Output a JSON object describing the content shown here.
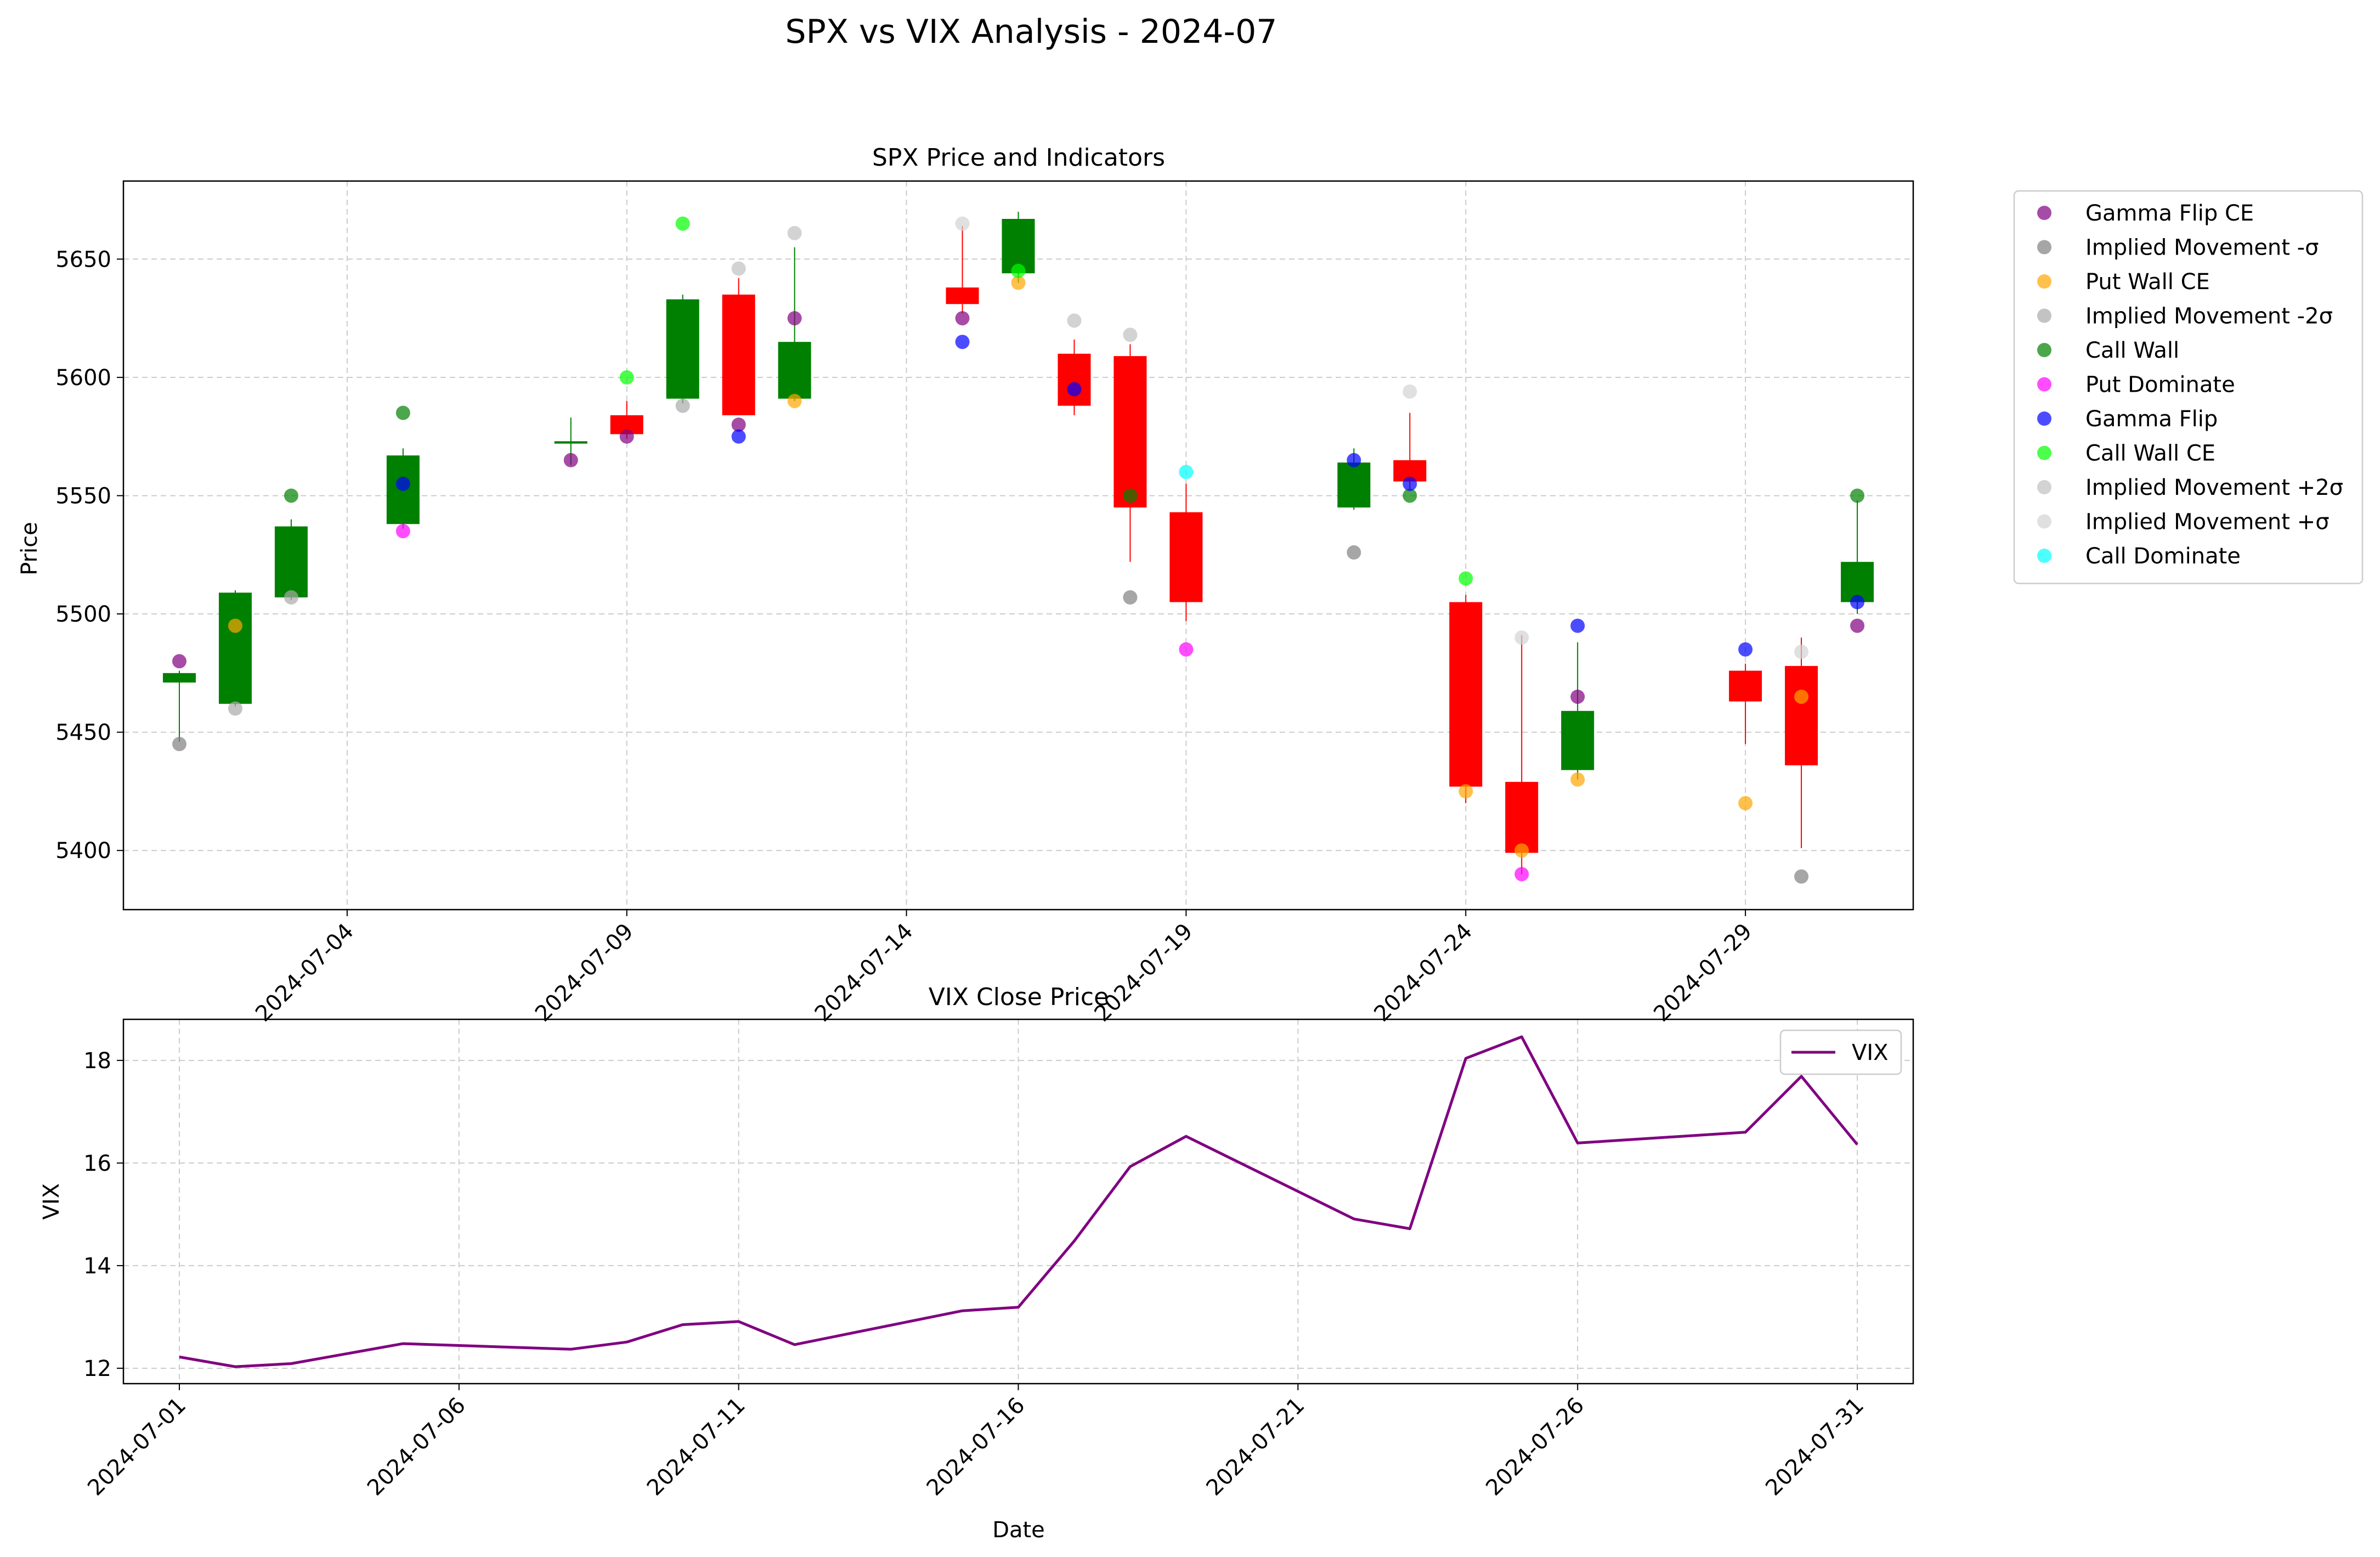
{
  "figure": {
    "title": "SPX vs VIX Analysis - 2024-07"
  },
  "colors": {
    "up": "#008000",
    "down": "#ff0000",
    "vix": "#800080",
    "grid": "#cccccc",
    "Gamma Flip CE": "#800080",
    "Implied Movement -σ": "#808080",
    "Put Wall CE": "#ffa500",
    "Implied Movement -2σ": "#a9a9a9",
    "Call Wall": "#008000",
    "Put Dominate": "#ff00ff",
    "Gamma Flip": "#0000ff",
    "Call Wall CE": "#00ff00",
    "Implied Movement +2σ": "#c0c0c0",
    "Implied Movement +σ": "#d3d3d3",
    "Call Dominate": "#00ffff"
  },
  "chart_data": [
    {
      "type": "candlestick",
      "title": "SPX Price and Indicators",
      "xlabel": "",
      "ylabel": "Price",
      "xlim": [
        "2024-06-30",
        "2024-08-01"
      ],
      "ylim": [
        5375,
        5683
      ],
      "x_ticks": [
        "2024-07-04",
        "2024-07-09",
        "2024-07-14",
        "2024-07-19",
        "2024-07-24",
        "2024-07-29"
      ],
      "y_ticks": [
        5400,
        5450,
        5500,
        5550,
        5600,
        5650
      ],
      "grid": true,
      "legend_position": "outside-right",
      "candles": [
        {
          "date": "2024-07-01",
          "open": 5471,
          "close": 5475,
          "high": 5476,
          "low": 5446
        },
        {
          "date": "2024-07-02",
          "open": 5462,
          "close": 5509,
          "high": 5510,
          "low": 5461
        },
        {
          "date": "2024-07-03",
          "open": 5507,
          "close": 5537,
          "high": 5540,
          "low": 5506
        },
        {
          "date": "2024-07-05",
          "open": 5538,
          "close": 5567,
          "high": 5570,
          "low": 5536
        },
        {
          "date": "2024-07-08",
          "open": 5572,
          "close": 5573,
          "high": 5583,
          "low": 5563
        },
        {
          "date": "2024-07-09",
          "open": 5584,
          "close": 5576,
          "high": 5590,
          "low": 5574
        },
        {
          "date": "2024-07-10",
          "open": 5591,
          "close": 5633,
          "high": 5635,
          "low": 5589
        },
        {
          "date": "2024-07-11",
          "open": 5635,
          "close": 5584,
          "high": 5642,
          "low": 5585
        },
        {
          "date": "2024-07-12",
          "open": 5591,
          "close": 5615,
          "high": 5655,
          "low": 5590
        },
        {
          "date": "2024-07-15",
          "open": 5638,
          "close": 5631,
          "high": 5664,
          "low": 5627
        },
        {
          "date": "2024-07-16",
          "open": 5644,
          "close": 5667,
          "high": 5670,
          "low": 5640
        },
        {
          "date": "2024-07-17",
          "open": 5610,
          "close": 5588,
          "high": 5616,
          "low": 5584
        },
        {
          "date": "2024-07-18",
          "open": 5609,
          "close": 5545,
          "high": 5614,
          "low": 5522
        },
        {
          "date": "2024-07-19",
          "open": 5543,
          "close": 5505,
          "high": 5555,
          "low": 5497
        },
        {
          "date": "2024-07-22",
          "open": 5545,
          "close": 5564,
          "high": 5570,
          "low": 5544
        },
        {
          "date": "2024-07-23",
          "open": 5565,
          "close": 5556,
          "high": 5585,
          "low": 5553
        },
        {
          "date": "2024-07-24",
          "open": 5505,
          "close": 5427,
          "high": 5508,
          "low": 5420
        },
        {
          "date": "2024-07-25",
          "open": 5429,
          "close": 5399,
          "high": 5491,
          "low": 5390
        },
        {
          "date": "2024-07-26",
          "open": 5434,
          "close": 5459,
          "high": 5488,
          "low": 5430
        },
        {
          "date": "2024-07-29",
          "open": 5476,
          "close": 5463,
          "high": 5479,
          "low": 5445
        },
        {
          "date": "2024-07-30",
          "open": 5478,
          "close": 5436,
          "high": 5490,
          "low": 5401
        },
        {
          "date": "2024-07-31",
          "open": 5505,
          "close": 5522,
          "high": 5548,
          "low": 5500
        }
      ],
      "indicator_series": [
        {
          "name": "Gamma Flip CE",
          "points": [
            [
              "2024-07-01",
              5480
            ],
            [
              "2024-07-08",
              5565
            ],
            [
              "2024-07-09",
              5575
            ],
            [
              "2024-07-11",
              5580
            ],
            [
              "2024-07-12",
              5625
            ],
            [
              "2024-07-15",
              5625
            ],
            [
              "2024-07-26",
              5465
            ],
            [
              "2024-07-31",
              5495
            ]
          ]
        },
        {
          "name": "Implied Movement -σ",
          "points": [
            [
              "2024-07-01",
              5445
            ],
            [
              "2024-07-18",
              5507
            ],
            [
              "2024-07-22",
              5526
            ],
            [
              "2024-07-30",
              5389
            ]
          ]
        },
        {
          "name": "Put Wall CE",
          "points": [
            [
              "2024-07-02",
              5495
            ],
            [
              "2024-07-12",
              5590
            ],
            [
              "2024-07-16",
              5640
            ],
            [
              "2024-07-24",
              5425
            ],
            [
              "2024-07-25",
              5400
            ],
            [
              "2024-07-26",
              5430
            ],
            [
              "2024-07-29",
              5420
            ],
            [
              "2024-07-30",
              5465
            ]
          ]
        },
        {
          "name": "Implied Movement -2σ",
          "points": [
            [
              "2024-07-02",
              5460
            ],
            [
              "2024-07-03",
              5507
            ],
            [
              "2024-07-10",
              5588
            ]
          ]
        },
        {
          "name": "Call Wall",
          "points": [
            [
              "2024-07-03",
              5550
            ],
            [
              "2024-07-05",
              5585
            ],
            [
              "2024-07-18",
              5550
            ],
            [
              "2024-07-23",
              5550
            ],
            [
              "2024-07-31",
              5550
            ]
          ]
        },
        {
          "name": "Put Dominate",
          "points": [
            [
              "2024-07-05",
              5535
            ],
            [
              "2024-07-19",
              5485
            ],
            [
              "2024-07-25",
              5390
            ]
          ]
        },
        {
          "name": "Gamma Flip",
          "points": [
            [
              "2024-07-05",
              5555
            ],
            [
              "2024-07-11",
              5575
            ],
            [
              "2024-07-15",
              5615
            ],
            [
              "2024-07-17",
              5595
            ],
            [
              "2024-07-22",
              5565
            ],
            [
              "2024-07-23",
              5555
            ],
            [
              "2024-07-26",
              5495
            ],
            [
              "2024-07-29",
              5485
            ],
            [
              "2024-07-31",
              5505
            ]
          ]
        },
        {
          "name": "Call Wall CE",
          "points": [
            [
              "2024-07-09",
              5600
            ],
            [
              "2024-07-10",
              5665
            ],
            [
              "2024-07-16",
              5645
            ],
            [
              "2024-07-24",
              5515
            ]
          ]
        },
        {
          "name": "Implied Movement +2σ",
          "points": [
            [
              "2024-07-11",
              5646
            ],
            [
              "2024-07-12",
              5661
            ],
            [
              "2024-07-17",
              5624
            ],
            [
              "2024-07-18",
              5618
            ]
          ]
        },
        {
          "name": "Implied Movement +σ",
          "points": [
            [
              "2024-07-15",
              5665
            ],
            [
              "2024-07-23",
              5594
            ],
            [
              "2024-07-25",
              5490
            ],
            [
              "2024-07-30",
              5484
            ]
          ]
        },
        {
          "name": "Call Dominate",
          "points": [
            [
              "2024-07-19",
              5560
            ]
          ]
        }
      ]
    },
    {
      "type": "line",
      "title": "VIX Close Price",
      "xlabel": "Date",
      "ylabel": "VIX",
      "xlim": [
        "2024-06-30",
        "2024-08-01"
      ],
      "ylim": [
        11.7,
        18.8
      ],
      "x_ticks": [
        "2024-07-01",
        "2024-07-06",
        "2024-07-11",
        "2024-07-16",
        "2024-07-21",
        "2024-07-26",
        "2024-07-31"
      ],
      "y_ticks": [
        12,
        14,
        16,
        18
      ],
      "grid": true,
      "legend_position": "top-right",
      "series": [
        {
          "name": "VIX",
          "points": [
            [
              "2024-07-01",
              12.22
            ],
            [
              "2024-07-02",
              12.03
            ],
            [
              "2024-07-03",
              12.09
            ],
            [
              "2024-07-05",
              12.48
            ],
            [
              "2024-07-08",
              12.37
            ],
            [
              "2024-07-09",
              12.51
            ],
            [
              "2024-07-10",
              12.85
            ],
            [
              "2024-07-11",
              12.91
            ],
            [
              "2024-07-12",
              12.46
            ],
            [
              "2024-07-15",
              13.12
            ],
            [
              "2024-07-16",
              13.19
            ],
            [
              "2024-07-17",
              14.48
            ],
            [
              "2024-07-18",
              15.93
            ],
            [
              "2024-07-19",
              16.52
            ],
            [
              "2024-07-22",
              14.91
            ],
            [
              "2024-07-23",
              14.72
            ],
            [
              "2024-07-24",
              18.04
            ],
            [
              "2024-07-25",
              18.46
            ],
            [
              "2024-07-26",
              16.39
            ],
            [
              "2024-07-29",
              16.6
            ],
            [
              "2024-07-30",
              17.69
            ],
            [
              "2024-07-31",
              16.36
            ]
          ]
        }
      ]
    }
  ]
}
